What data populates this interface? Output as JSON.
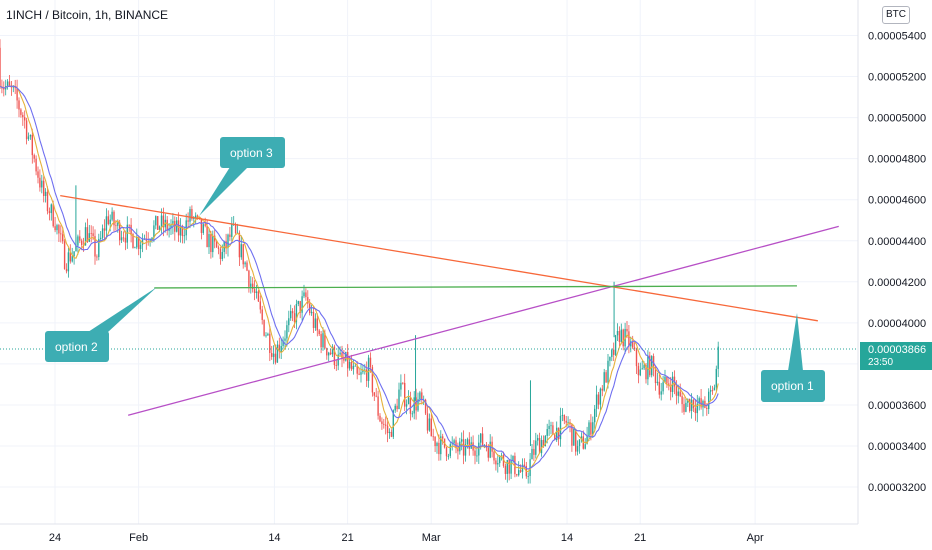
{
  "title": "1INCH / Bitcoin, 1h, BINANCE",
  "currency_button": "BTC",
  "last_price": {
    "value": "0.00003866",
    "countdown": "23:50"
  },
  "colors": {
    "up": "#26a69a",
    "down": "#ef5350",
    "ma_fast": "#e5b13b",
    "ma_slow": "#6f6ff0",
    "trendline_orange": "#f7683a",
    "trendline_purple": "#b74fc6",
    "trendline_green": "#4caf50",
    "callout": "#3dadb3"
  },
  "chart_data": {
    "type": "candlestick",
    "y_ticks": [
      "0.00005400",
      "0.00005200",
      "0.00005000",
      "0.00004800",
      "0.00004600",
      "0.00004400",
      "0.00004200",
      "0.00004000",
      "0.00003800",
      "0.00003600",
      "0.00003400",
      "0.00003200"
    ],
    "x_ticks": [
      "24",
      "Feb",
      "14",
      "21",
      "Mar",
      "14",
      "21",
      "Apr"
    ],
    "ylim": [
      3.01e-05,
      5.51e-05
    ],
    "grid": true,
    "close_path": [
      [
        "Jan 18 00:00",
        5.34e-05
      ],
      [
        "Jan 19 00:00",
        5.16e-05
      ],
      [
        "Jan 20 00:00",
        5.12e-05
      ],
      [
        "Jan 21 00:00",
        5e-05
      ],
      [
        "Jan 22 00:00",
        4.8e-05
      ],
      [
        "Jan 23 00:00",
        4.6e-05
      ],
      [
        "Jan 24 00:00",
        4.5e-05
      ],
      [
        "Jan 25 00:00",
        4.3e-05
      ],
      [
        "Jan 26 00:00",
        4.36e-05
      ],
      [
        "Jan 27 00:00",
        4.45e-05
      ],
      [
        "Jan 28 00:00",
        4.33e-05
      ],
      [
        "Jan 29 00:00",
        4.52e-05
      ],
      [
        "Jan 30 00:00",
        4.46e-05
      ],
      [
        "Feb 01 00:00",
        4.4e-05
      ],
      [
        "Feb 03 00:00",
        4.48e-05
      ],
      [
        "Feb 05 00:00",
        4.44e-05
      ],
      [
        "Feb 06 00:00",
        4.52e-05
      ],
      [
        "Feb 08 00:00",
        4.38e-05
      ],
      [
        "Feb 09 00:00",
        4.33e-05
      ],
      [
        "Feb 10 00:00",
        4.45e-05
      ],
      [
        "Feb 11 00:00",
        4.32e-05
      ],
      [
        "Feb 12 00:00",
        4.15e-05
      ],
      [
        "Feb 13 00:00",
        3.98e-05
      ],
      [
        "Feb 14 00:00",
        3.85e-05
      ],
      [
        "Feb 15 00:00",
        3.95e-05
      ],
      [
        "Feb 16 00:00",
        4.05e-05
      ],
      [
        "Feb 17 00:00",
        4.12e-05
      ],
      [
        "Feb 18 00:00",
        3.96e-05
      ],
      [
        "Feb 19 00:00",
        3.88e-05
      ],
      [
        "Feb 20 00:00",
        3.82e-05
      ],
      [
        "Feb 21 00:00",
        3.8e-05
      ],
      [
        "Feb 22 00:00",
        3.72e-05
      ],
      [
        "Feb 23 00:00",
        3.78e-05
      ],
      [
        "Feb 24 00:00",
        3.55e-05
      ],
      [
        "Feb 25 00:00",
        3.45e-05
      ],
      [
        "Feb 26 00:00",
        3.68e-05
      ],
      [
        "Feb 27 00:00",
        3.6e-05
      ],
      [
        "Feb 28 00:00",
        3.62e-05
      ],
      [
        "Mar 01 00:00",
        3.45e-05
      ],
      [
        "Mar 02 00:00",
        3.4e-05
      ],
      [
        "Mar 04 00:00",
        3.38e-05
      ],
      [
        "Mar 06 00:00",
        3.42e-05
      ],
      [
        "Mar 08 00:00",
        3.32e-05
      ],
      [
        "Mar 09 00:00",
        3.3e-05
      ],
      [
        "Mar 10 00:00",
        3.25e-05
      ],
      [
        "Mar 11 00:00",
        3.4e-05
      ],
      [
        "Mar 12 00:00",
        3.45e-05
      ],
      [
        "Mar 13 00:00",
        3.48e-05
      ],
      [
        "Mar 14 00:00",
        3.52e-05
      ],
      [
        "Mar 15 00:00",
        3.38e-05
      ],
      [
        "Mar 16 00:00",
        3.45e-05
      ],
      [
        "Mar 17 00:00",
        3.65e-05
      ],
      [
        "Mar 18 00:00",
        3.78e-05
      ],
      [
        "Mar 19 00:00",
        3.95e-05
      ],
      [
        "Mar 20 00:00",
        3.9e-05
      ],
      [
        "Mar 21 00:00",
        3.75e-05
      ],
      [
        "Mar 22 00:00",
        3.8e-05
      ],
      [
        "Mar 23 00:00",
        3.68e-05
      ],
      [
        "Mar 24 00:00",
        3.72e-05
      ],
      [
        "Mar 25 00:00",
        3.6e-05
      ],
      [
        "Mar 26 00:00",
        3.62e-05
      ],
      [
        "Mar 27 00:00",
        3.58e-05
      ],
      [
        "Mar 28 00:00",
        3.66e-05
      ],
      [
        "Mar 28 12:00",
        3.866e-05
      ]
    ],
    "trendlines": [
      {
        "name": "option 3",
        "color": "orange",
        "from": [
          "Jan 24 12:00",
          4.62e-05
        ],
        "to": [
          "Apr 07 00:00",
          4.01e-05
        ]
      },
      {
        "name": "option 1",
        "color": "purple",
        "from": [
          "Jan 31 00:00",
          3.55e-05
        ],
        "to": [
          "Apr 09 00:00",
          4.47e-05
        ]
      },
      {
        "name": "option 2",
        "color": "green",
        "from": [
          "Feb 02 12:00",
          4.17e-05
        ],
        "to": [
          "Apr 05 00:00",
          4.18e-05
        ]
      }
    ],
    "annotations": [
      {
        "text": "option 3",
        "points_to": [
          "Feb 06 12:00",
          4.54e-05
        ]
      },
      {
        "text": "option 2",
        "points_to": [
          "Feb 02 12:00",
          4.17e-05
        ]
      },
      {
        "text": "option 1",
        "points_to": [
          "Apr 01 12:00",
          4.05e-05
        ]
      }
    ]
  }
}
